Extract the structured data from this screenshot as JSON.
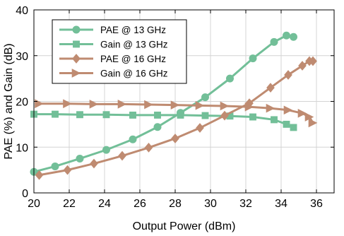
{
  "chart_data": {
    "type": "line",
    "title": "",
    "xlabel": "Output Power (dBm)",
    "ylabel": "PAE (%) and Gain (dB)",
    "xlim": [
      20,
      37
    ],
    "ylim": [
      0,
      40
    ],
    "x_ticks": [
      20,
      22,
      24,
      26,
      28,
      30,
      32,
      34,
      36
    ],
    "y_ticks": [
      0,
      10,
      20,
      30,
      40
    ],
    "grid": true,
    "legend_position": "top-left",
    "series": [
      {
        "name": "PAE @ 13 GHz",
        "color": "#72bf98",
        "marker": "circle",
        "x": [
          20.0,
          21.2,
          22.6,
          24.1,
          25.6,
          27.0,
          28.3,
          29.7,
          31.1,
          32.4,
          33.6,
          34.3,
          34.7
        ],
        "y": [
          4.6,
          5.8,
          7.5,
          9.4,
          11.7,
          14.4,
          17.5,
          20.9,
          25.0,
          29.4,
          33.0,
          34.4,
          34.1
        ]
      },
      {
        "name": "Gain @ 13 GHz",
        "color": "#72bf98",
        "marker": "square",
        "x": [
          20.0,
          21.2,
          22.6,
          24.1,
          25.6,
          27.0,
          28.3,
          29.7,
          31.1,
          32.4,
          33.6,
          34.3,
          34.7
        ],
        "y": [
          17.2,
          17.2,
          17.1,
          17.1,
          17.0,
          17.0,
          17.0,
          16.9,
          16.8,
          16.6,
          16.0,
          15.0,
          14.3
        ]
      },
      {
        "name": "PAE @ 16 GHz",
        "color": "#bf8b71",
        "marker": "diamond",
        "x": [
          20.3,
          21.9,
          23.4,
          25.0,
          26.5,
          28.0,
          29.4,
          30.8,
          32.2,
          33.4,
          34.4,
          35.2,
          35.6,
          35.8
        ],
        "y": [
          3.9,
          5.0,
          6.4,
          8.1,
          9.9,
          11.9,
          14.2,
          16.9,
          19.6,
          23.0,
          25.8,
          27.8,
          28.8,
          28.8
        ]
      },
      {
        "name": "Gain @ 16 GHz",
        "color": "#bf8b71",
        "marker": "triangle-right",
        "x": [
          20.3,
          21.9,
          23.4,
          25.0,
          26.5,
          28.0,
          29.4,
          30.8,
          32.2,
          33.4,
          34.4,
          35.2,
          35.6,
          35.8
        ],
        "y": [
          19.5,
          19.5,
          19.4,
          19.4,
          19.3,
          19.2,
          19.1,
          19.0,
          18.8,
          18.5,
          18.1,
          17.4,
          16.6,
          15.3
        ]
      }
    ]
  }
}
